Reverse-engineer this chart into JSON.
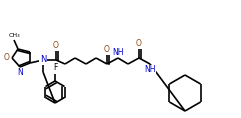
{
  "bg_color": "#ffffff",
  "line_color": "#000000",
  "bond_width": 1.2,
  "nitrogen_color": "#0000cd",
  "oxygen_color": "#8b4513",
  "figsize": [
    2.41,
    1.18
  ],
  "dpi": 100,
  "xlim": [
    0,
    241
  ],
  "ylim": [
    0,
    118
  ]
}
